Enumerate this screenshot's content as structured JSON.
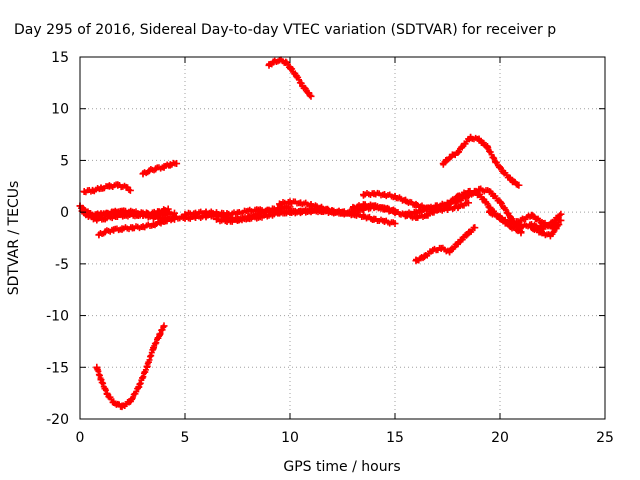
{
  "chart_data": {
    "type": "scatter",
    "title": "Day 295 of 2016, Sidereal Day-to-day VTEC variation (SDTVAR) for receiver p",
    "xlabel": "GPS time / hours",
    "ylabel": "SDTVAR / TECUs",
    "xlim": [
      0,
      25
    ],
    "ylim": [
      -20,
      15
    ],
    "x_ticks": [
      0,
      5,
      10,
      15,
      20,
      25
    ],
    "y_ticks": [
      -20,
      -15,
      -10,
      -5,
      0,
      5,
      10,
      15
    ],
    "grid": true,
    "marker": "plus",
    "color": "#ff0000",
    "series": [
      {
        "x": [
          0.0,
          0.2,
          0.5,
          0.8,
          1.2,
          1.6,
          2.0,
          2.5,
          3.0,
          3.5,
          4.0,
          4.5
        ],
        "y": [
          0.6,
          0.2,
          -0.2,
          -0.3,
          -0.2,
          0.0,
          0.1,
          0.0,
          -0.1,
          -0.2,
          -0.2,
          -0.1
        ]
      },
      {
        "x": [
          0.1,
          0.4,
          0.8,
          1.2,
          1.7,
          2.2,
          2.7,
          3.2,
          3.7,
          4.2
        ],
        "y": [
          0.1,
          -0.4,
          -0.7,
          -0.6,
          -0.4,
          -0.3,
          -0.3,
          -0.2,
          0.0,
          0.3
        ]
      },
      {
        "x": [
          0.2,
          0.6,
          1.0,
          1.5,
          2.0,
          2.5,
          3.0,
          3.5,
          4.0,
          4.5
        ],
        "y": [
          0.0,
          -0.3,
          -0.2,
          -0.1,
          0.0,
          -0.1,
          -0.3,
          -0.5,
          -0.6,
          -0.7
        ]
      },
      {
        "x": [
          0.9,
          1.2,
          1.6,
          2.0,
          2.5,
          3.0,
          3.5,
          4.0,
          4.5
        ],
        "y": [
          -2.2,
          -1.9,
          -1.7,
          -1.6,
          -1.5,
          -1.4,
          -1.2,
          -0.9,
          -0.5
        ]
      },
      {
        "x": [
          0.2,
          0.6,
          1.0,
          1.4,
          1.8,
          2.2,
          2.4
        ],
        "y": [
          2.0,
          2.1,
          2.3,
          2.5,
          2.6,
          2.4,
          2.1
        ]
      },
      {
        "x": [
          3.0,
          3.3,
          3.6,
          4.0,
          4.3,
          4.6
        ],
        "y": [
          3.7,
          4.0,
          4.2,
          4.4,
          4.6,
          4.7
        ]
      },
      {
        "x": [
          0.8,
          1.0,
          1.3,
          1.6,
          2.0,
          2.4,
          2.8,
          3.2,
          3.5,
          3.8,
          4.0
        ],
        "y": [
          -15.0,
          -16.2,
          -17.6,
          -18.4,
          -18.8,
          -18.3,
          -16.9,
          -14.9,
          -13.1,
          -11.8,
          -11.0
        ]
      },
      {
        "x": [
          4.5,
          5.0,
          5.5,
          6.0,
          6.5,
          7.0,
          7.5,
          8.0,
          8.5,
          9.0,
          9.5,
          10.0,
          10.5,
          11.0,
          11.5,
          12.0,
          12.5,
          13.0,
          13.5,
          14.0,
          14.5,
          15.0
        ],
        "y": [
          -0.5,
          -0.6,
          -0.5,
          -0.4,
          -0.3,
          -0.5,
          -0.7,
          -0.6,
          -0.5,
          -0.3,
          -0.1,
          0.0,
          0.0,
          0.1,
          0.1,
          0.0,
          -0.1,
          -0.2,
          -0.4,
          -0.7,
          -0.9,
          -1.1
        ]
      },
      {
        "x": [
          5.0,
          5.5,
          6.0,
          6.5,
          7.0,
          7.5,
          8.0,
          8.5,
          9.0,
          9.5,
          10.0,
          10.5,
          11.0,
          11.5,
          12.0,
          12.5,
          13.0
        ],
        "y": [
          -0.2,
          -0.1,
          0.0,
          -0.1,
          -0.2,
          -0.1,
          0.1,
          0.2,
          0.1,
          0.0,
          0.0,
          0.1,
          0.2,
          0.2,
          0.1,
          0.0,
          -0.1
        ]
      },
      {
        "x": [
          6.5,
          7.0,
          7.5,
          8.0,
          8.5,
          9.0,
          9.5,
          10.0
        ],
        "y": [
          -0.7,
          -0.9,
          -0.8,
          -0.5,
          -0.2,
          0.2,
          0.4,
          0.5
        ]
      },
      {
        "x": [
          9.5,
          10.0,
          10.5,
          11.0,
          11.5,
          12.0,
          12.5,
          13.0,
          13.5,
          14.0,
          14.5,
          15.0
        ],
        "y": [
          0.8,
          1.0,
          0.9,
          0.7,
          0.4,
          0.1,
          -0.1,
          0.0,
          0.3,
          0.5,
          0.4,
          0.1
        ]
      },
      {
        "x": [
          9.0,
          9.2,
          9.5,
          9.8,
          10.0,
          10.3,
          10.6,
          10.9,
          11.0
        ],
        "y": [
          14.2,
          14.5,
          14.7,
          14.5,
          14.0,
          13.2,
          12.2,
          11.5,
          11.2
        ]
      },
      {
        "x": [
          13.5,
          14.0,
          14.5,
          15.0,
          15.5,
          16.0,
          16.5,
          17.0,
          17.5,
          18.0,
          18.5
        ],
        "y": [
          1.7,
          1.8,
          1.7,
          1.5,
          1.1,
          0.7,
          0.4,
          0.2,
          0.3,
          0.5,
          0.9
        ]
      },
      {
        "x": [
          13.0,
          13.5,
          14.0,
          14.5,
          15.0,
          15.5,
          16.0,
          16.5,
          17.0,
          17.5,
          18.0,
          18.5,
          19.0,
          19.3,
          19.6,
          20.0,
          20.5,
          21.0
        ],
        "y": [
          0.4,
          0.7,
          0.6,
          0.3,
          0.0,
          -0.3,
          -0.5,
          -0.3,
          0.2,
          0.8,
          1.5,
          2.0,
          1.7,
          1.0,
          0.2,
          -0.6,
          -1.4,
          -1.9
        ]
      },
      {
        "x": [
          15.5,
          16.0,
          16.5,
          17.0,
          17.5,
          18.0,
          18.5,
          19.0,
          19.5,
          20.0,
          20.5,
          21.0
        ],
        "y": [
          -0.2,
          0.0,
          0.3,
          0.6,
          0.8,
          1.1,
          1.6,
          2.2,
          2.0,
          1.0,
          -0.5,
          -2.0
        ]
      },
      {
        "x": [
          16.0,
          16.4,
          16.8,
          17.2,
          17.6,
          18.0,
          18.4,
          18.8
        ],
        "y": [
          -4.7,
          -4.3,
          -3.7,
          -3.5,
          -3.8,
          -3.0,
          -2.2,
          -1.5
        ]
      },
      {
        "x": [
          17.3,
          17.6,
          18.0,
          18.3,
          18.6,
          19.0,
          19.4,
          19.8,
          20.2,
          20.6,
          20.9
        ],
        "y": [
          4.7,
          5.3,
          5.8,
          6.6,
          7.2,
          7.0,
          6.3,
          4.8,
          3.8,
          3.0,
          2.6
        ]
      },
      {
        "x": [
          19.5,
          20.0,
          20.5,
          21.0,
          21.5,
          22.0,
          22.5,
          22.9
        ],
        "y": [
          0.0,
          -0.5,
          -1.2,
          -0.8,
          -0.3,
          -1.0,
          -1.5,
          -0.8
        ]
      },
      {
        "x": [
          20.5,
          21.0,
          21.5,
          22.0,
          22.5,
          22.9
        ],
        "y": [
          -0.8,
          -1.4,
          -1.2,
          -1.6,
          -1.0,
          -0.2
        ]
      },
      {
        "x": [
          21.5,
          22.0,
          22.4,
          22.8
        ],
        "y": [
          -1.5,
          -2.0,
          -2.3,
          -1.2
        ]
      }
    ]
  }
}
